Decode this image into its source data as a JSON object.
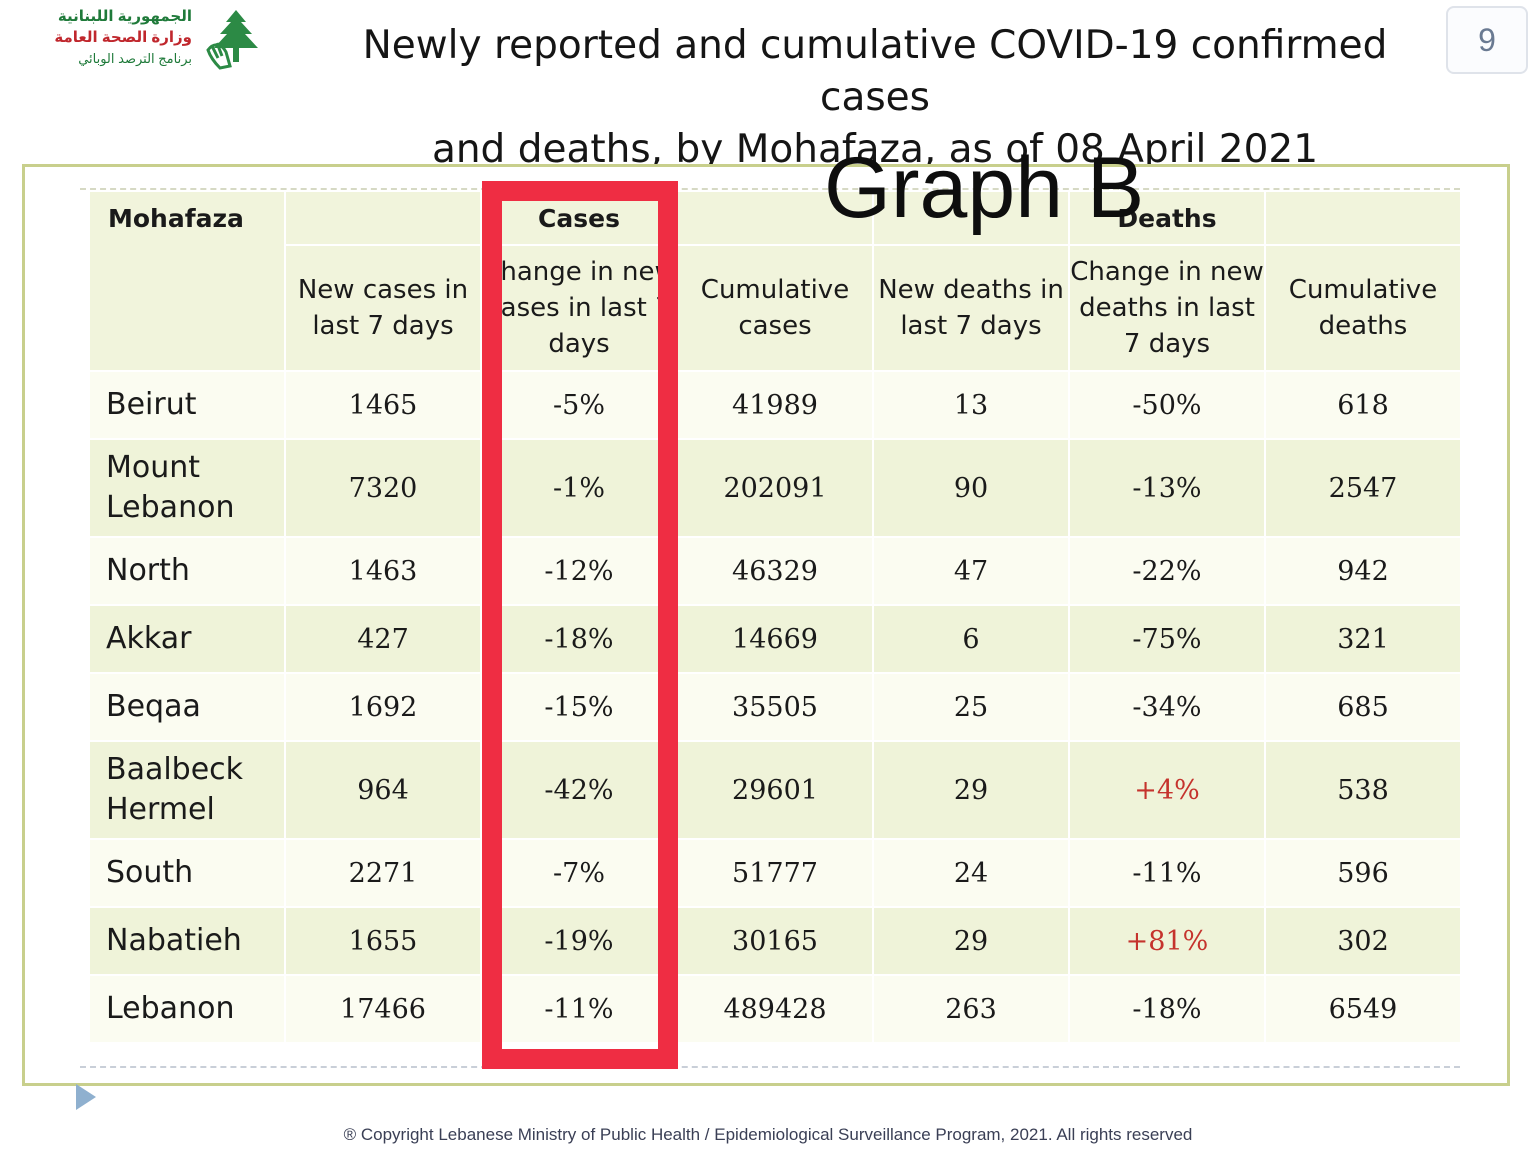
{
  "header": {
    "logo": {
      "line1": "الجمهورية اللبنانية",
      "line2": "وزارة الصحة العامة",
      "line3": "برنامج الترصد الوبائي"
    },
    "title_line1": "Newly reported and cumulative COVID-19 confirmed cases",
    "title_line2": "and deaths, by Mohafaza, as of 08 April 2021",
    "page_number": "9"
  },
  "annotation": {
    "graph_label": "Graph B",
    "highlight_color": "#ef2d43"
  },
  "table": {
    "group_headers": {
      "mohafaza": "Mohafaza",
      "cases": "Cases",
      "deaths": "Deaths"
    },
    "columns": [
      "New cases in last 7 days",
      "Change in new cases in last 7 days",
      "Cumulative cases",
      "New deaths in last 7 days",
      "Change in new deaths in last 7 days",
      "Cumulative deaths"
    ],
    "rows": [
      {
        "name": "Beirut",
        "new_cases": "1465",
        "change_cases": "-5%",
        "cum_cases": "41989",
        "new_deaths": "13",
        "change_deaths": "-50%",
        "cum_deaths": "618"
      },
      {
        "name": "Mount Lebanon",
        "new_cases": "7320",
        "change_cases": "-1%",
        "cum_cases": "202091",
        "new_deaths": "90",
        "change_deaths": "-13%",
        "cum_deaths": "2547"
      },
      {
        "name": "North",
        "new_cases": "1463",
        "change_cases": "-12%",
        "cum_cases": "46329",
        "new_deaths": "47",
        "change_deaths": "-22%",
        "cum_deaths": "942"
      },
      {
        "name": "Akkar",
        "new_cases": "427",
        "change_cases": "-18%",
        "cum_cases": "14669",
        "new_deaths": "6",
        "change_deaths": "-75%",
        "cum_deaths": "321"
      },
      {
        "name": "Beqaa",
        "new_cases": "1692",
        "change_cases": "-15%",
        "cum_cases": "35505",
        "new_deaths": "25",
        "change_deaths": "-34%",
        "cum_deaths": "685"
      },
      {
        "name": "Baalbeck Hermel",
        "new_cases": "964",
        "change_cases": "-42%",
        "cum_cases": "29601",
        "new_deaths": "29",
        "change_deaths": "+4%",
        "cum_deaths": "538"
      },
      {
        "name": "South",
        "new_cases": "2271",
        "change_cases": "-7%",
        "cum_cases": "51777",
        "new_deaths": "24",
        "change_deaths": "-11%",
        "cum_deaths": "596"
      },
      {
        "name": "Nabatieh",
        "new_cases": "1655",
        "change_cases": "-19%",
        "cum_cases": "30165",
        "new_deaths": "29",
        "change_deaths": "+81%",
        "cum_deaths": "302"
      },
      {
        "name": "Lebanon",
        "new_cases": "17466",
        "change_cases": "-11%",
        "cum_cases": "489428",
        "new_deaths": "263",
        "change_deaths": "-18%",
        "cum_deaths": "6549"
      }
    ],
    "increase_color": "#c5332d"
  },
  "footer": {
    "copyright": "® Copyright Lebanese Ministry of Public Health / Epidemiological Surveillance Program, 2021. All rights reserved"
  }
}
